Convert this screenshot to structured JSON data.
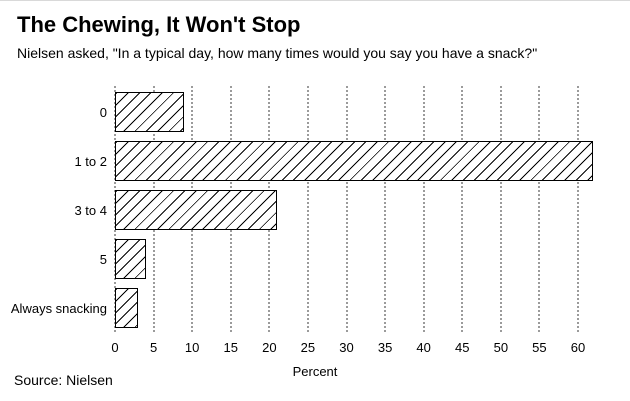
{
  "header": {
    "title": "The Chewing, It Won't Stop",
    "subtitle": "Nielsen asked, \"In a typical day, how many times would you say you have a snack?\""
  },
  "footer": {
    "source": "Source: Nielsen"
  },
  "chart_data": {
    "type": "bar",
    "orientation": "horizontal",
    "title": "The Chewing, It Won't Stop",
    "subtitle": "Nielsen asked, \"In a typical day, how many times would you say you have a snack?\"",
    "categories": [
      "0",
      "1 to 2",
      "3 to 4",
      "5",
      "Always snacking"
    ],
    "values": [
      9,
      62,
      21,
      4,
      3
    ],
    "xlabel": "Percent",
    "ylabel": "",
    "xticks": [
      0,
      5,
      10,
      15,
      20,
      25,
      30,
      35,
      40,
      45,
      50,
      55,
      60
    ],
    "xlim": [
      0,
      62.5
    ],
    "grid": "vertical-dotted",
    "legend": "none",
    "bar_fill": "#ffffff",
    "bar_hatch": "diagonal-forward-slash",
    "bar_border_color": "#000000",
    "gridline_color": "#9b9b9b",
    "source": "Source: Nielsen"
  }
}
